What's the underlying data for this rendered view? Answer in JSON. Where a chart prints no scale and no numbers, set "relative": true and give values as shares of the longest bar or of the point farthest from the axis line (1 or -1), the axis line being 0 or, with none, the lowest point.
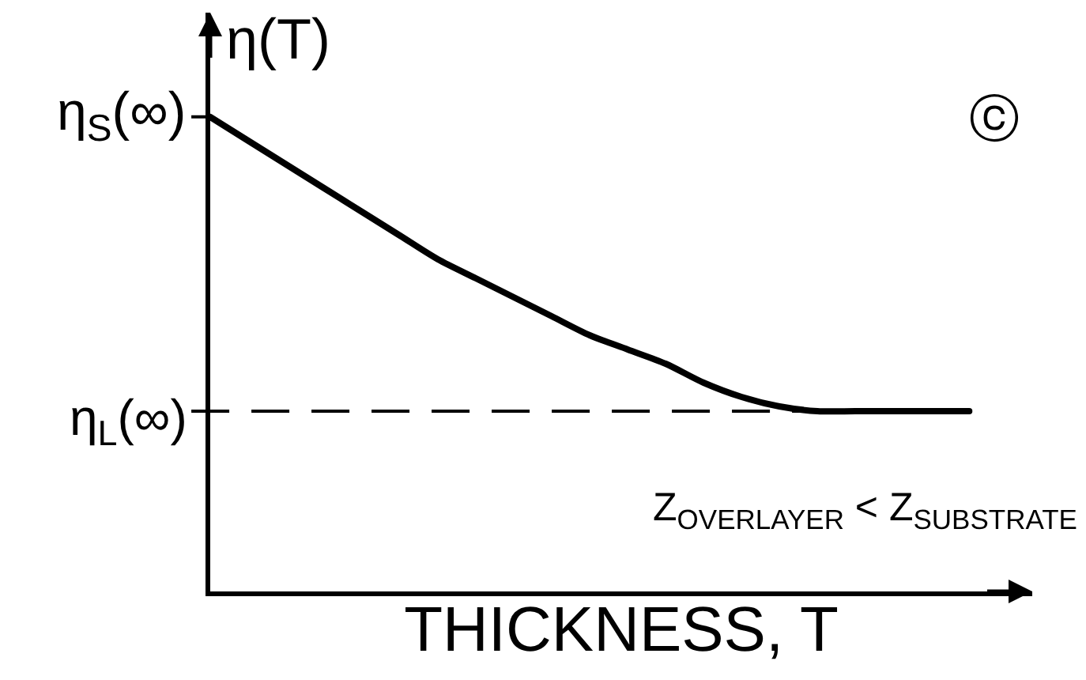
{
  "chart_data": {
    "type": "line",
    "relative": true,
    "xlabel": "THICKNESS, T",
    "ylabel": "η(T)",
    "categories": [
      null,
      null,
      null,
      null,
      null,
      null,
      null,
      null,
      null,
      null,
      null,
      null,
      null,
      null,
      null,
      null,
      null,
      null,
      null,
      null,
      null
    ],
    "series": [
      {
        "color": "#000000",
        "values": [
          1.0,
          0.95,
          0.9,
          0.85,
          0.8,
          0.75,
          0.7,
          0.66,
          0.62,
          0.58,
          0.54,
          0.51,
          0.48,
          0.44,
          0.41,
          0.39,
          0.38,
          0.38,
          0.38,
          0.38,
          0.38
        ]
      }
    ],
    "ref_lines": [
      {
        "axis": "y",
        "value": 0.38,
        "label": "η$_{L}$(∞)",
        "line_style": "dashed",
        "color": "#000000"
      }
    ],
    "annotations": [
      "η$_{S}$(∞)",
      "ⓒ",
      "Z$_{OVERLAYER}$ < Z$_{SUBSTRATE}$"
    ]
  }
}
